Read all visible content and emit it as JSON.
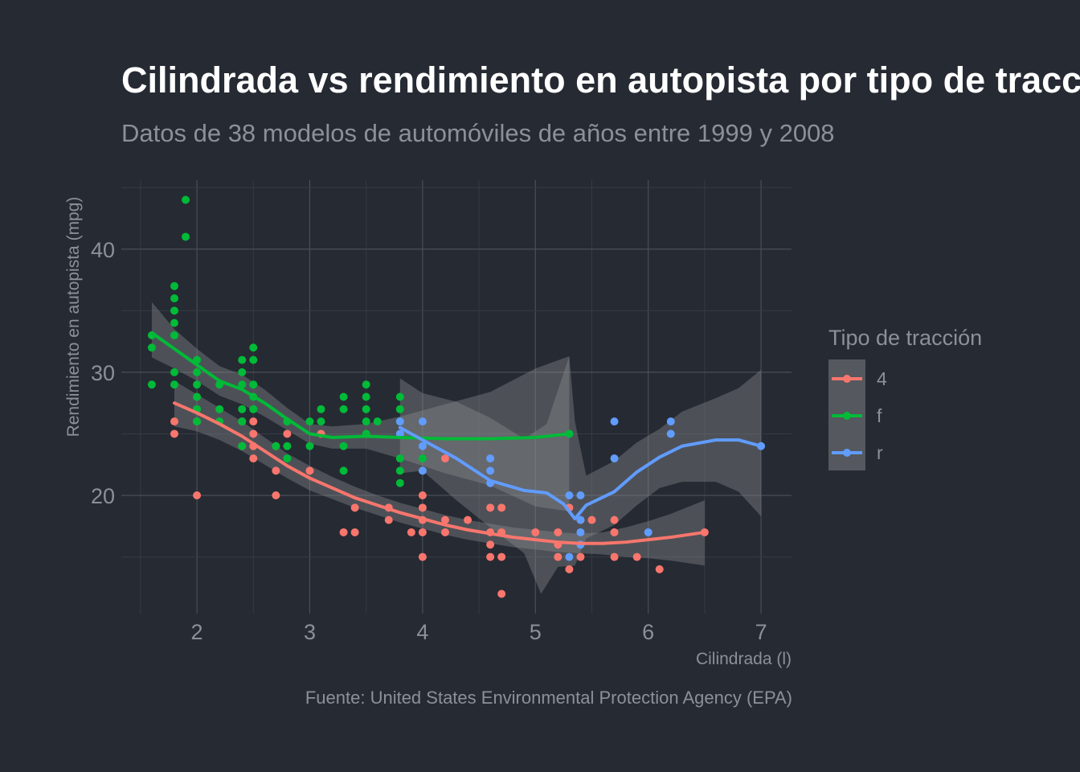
{
  "chart_data": {
    "type": "scatter",
    "title": "Cilindrada vs rendimiento en autopista por tipo de tracción",
    "subtitle": "Datos de 38 modelos de automóviles de años entre 1999 y 2008",
    "caption": "Fuente: United States Environmental Protection Agency (EPA)",
    "xlabel": "Cilindrada (l)",
    "ylabel": "Rendimiento en autopista (mpg)",
    "xlim": [
      1.33,
      7.27
    ],
    "ylim": [
      10.4,
      45.6
    ],
    "x_ticks": [
      "2",
      "3",
      "4",
      "5",
      "6",
      "7"
    ],
    "y_ticks": [
      "20",
      "30",
      "40"
    ],
    "grid": true,
    "legend_title": "Tipo de tracción",
    "legend_position": "right",
    "background": "#262a33",
    "series": [
      {
        "name": "4",
        "color": "#f8766d",
        "points": [
          [
            1.8,
            26
          ],
          [
            1.8,
            25
          ],
          [
            2,
            20
          ],
          [
            2,
            26
          ],
          [
            2.4,
            24
          ],
          [
            2.4,
            26
          ],
          [
            2.5,
            26
          ],
          [
            2.5,
            25
          ],
          [
            2.5,
            24
          ],
          [
            2.5,
            23
          ],
          [
            2.7,
            24
          ],
          [
            2.7,
            22
          ],
          [
            2.7,
            20
          ],
          [
            2.8,
            25
          ],
          [
            3,
            22
          ],
          [
            3.1,
            25
          ],
          [
            3.3,
            17
          ],
          [
            3.4,
            19
          ],
          [
            3.4,
            17
          ],
          [
            3.7,
            19
          ],
          [
            3.7,
            18
          ],
          [
            3.9,
            17
          ],
          [
            4,
            20
          ],
          [
            4,
            19
          ],
          [
            4,
            18
          ],
          [
            4,
            17
          ],
          [
            4,
            15
          ],
          [
            4.2,
            23
          ],
          [
            4.2,
            18
          ],
          [
            4.2,
            17
          ],
          [
            4.4,
            18
          ],
          [
            4.6,
            19
          ],
          [
            4.6,
            17
          ],
          [
            4.6,
            16
          ],
          [
            4.6,
            15
          ],
          [
            4.7,
            19
          ],
          [
            4.7,
            17
          ],
          [
            4.7,
            15
          ],
          [
            4.7,
            12
          ],
          [
            5,
            17
          ],
          [
            5.2,
            17
          ],
          [
            5.2,
            16
          ],
          [
            5.2,
            15
          ],
          [
            5.3,
            19
          ],
          [
            5.3,
            14
          ],
          [
            5.4,
            15
          ],
          [
            5.4,
            18
          ],
          [
            5.5,
            18
          ],
          [
            5.7,
            18
          ],
          [
            5.7,
            17
          ],
          [
            5.7,
            15
          ],
          [
            5.9,
            15
          ],
          [
            6.1,
            14
          ],
          [
            6.5,
            17
          ]
        ],
        "smooth": [
          [
            1.8,
            27.5
          ],
          [
            2,
            26.7
          ],
          [
            2.2,
            25.8
          ],
          [
            2.4,
            24.8
          ],
          [
            2.6,
            23.6
          ],
          [
            2.8,
            22.4
          ],
          [
            3,
            21.4
          ],
          [
            3.2,
            20.6
          ],
          [
            3.4,
            19.8
          ],
          [
            3.6,
            19.2
          ],
          [
            3.8,
            18.6
          ],
          [
            4,
            18.1
          ],
          [
            4.2,
            17.6
          ],
          [
            4.4,
            17.2
          ],
          [
            4.6,
            16.9
          ],
          [
            4.8,
            16.6
          ],
          [
            5,
            16.4
          ],
          [
            5.2,
            16.2
          ],
          [
            5.4,
            16.1
          ],
          [
            5.6,
            16.1
          ],
          [
            5.8,
            16.2
          ],
          [
            6,
            16.4
          ],
          [
            6.2,
            16.6
          ],
          [
            6.5,
            17
          ]
        ],
        "band_upper": [
          [
            1.8,
            29.3
          ],
          [
            2,
            28.2
          ],
          [
            2.2,
            27.1
          ],
          [
            2.4,
            26
          ],
          [
            2.6,
            24.7
          ],
          [
            2.8,
            23.4
          ],
          [
            3,
            22.4
          ],
          [
            3.2,
            21.5
          ],
          [
            3.4,
            20.7
          ],
          [
            3.6,
            20
          ],
          [
            3.8,
            19.4
          ],
          [
            4,
            18.9
          ],
          [
            4.2,
            18.4
          ],
          [
            4.4,
            18
          ],
          [
            4.6,
            17.7
          ],
          [
            4.8,
            17.4
          ],
          [
            5,
            17.2
          ],
          [
            5.2,
            17
          ],
          [
            5.4,
            16.9
          ],
          [
            5.6,
            17
          ],
          [
            5.8,
            17.4
          ],
          [
            6,
            17.9
          ],
          [
            6.2,
            18.5
          ],
          [
            6.5,
            19.6
          ]
        ],
        "band_lower": [
          [
            1.8,
            25.6
          ],
          [
            2,
            25.2
          ],
          [
            2.2,
            24.5
          ],
          [
            2.4,
            23.6
          ],
          [
            2.6,
            22.5
          ],
          [
            2.8,
            21.4
          ],
          [
            3,
            20.4
          ],
          [
            3.2,
            19.7
          ],
          [
            3.4,
            19
          ],
          [
            3.6,
            18.4
          ],
          [
            3.8,
            17.8
          ],
          [
            4,
            17.3
          ],
          [
            4.2,
            16.8
          ],
          [
            4.4,
            16.4
          ],
          [
            4.6,
            16.1
          ],
          [
            4.8,
            15.8
          ],
          [
            5,
            15.6
          ],
          [
            5.2,
            15.4
          ],
          [
            5.4,
            15.3
          ],
          [
            5.6,
            15.2
          ],
          [
            5.8,
            15
          ],
          [
            6,
            14.9
          ],
          [
            6.2,
            14.7
          ],
          [
            6.5,
            14.3
          ]
        ]
      },
      {
        "name": "f",
        "color": "#00ba38",
        "points": [
          [
            1.6,
            33
          ],
          [
            1.6,
            32
          ],
          [
            1.6,
            29
          ],
          [
            1.8,
            37
          ],
          [
            1.8,
            36
          ],
          [
            1.8,
            35
          ],
          [
            1.8,
            34
          ],
          [
            1.8,
            33
          ],
          [
            1.8,
            30
          ],
          [
            1.8,
            29
          ],
          [
            1.9,
            44
          ],
          [
            1.9,
            41
          ],
          [
            2,
            31
          ],
          [
            2,
            30
          ],
          [
            2,
            29
          ],
          [
            2,
            28
          ],
          [
            2,
            27
          ],
          [
            2,
            26
          ],
          [
            2.2,
            29
          ],
          [
            2.2,
            27
          ],
          [
            2.2,
            26
          ],
          [
            2.4,
            31
          ],
          [
            2.4,
            30
          ],
          [
            2.4,
            29
          ],
          [
            2.4,
            27
          ],
          [
            2.4,
            26
          ],
          [
            2.4,
            24
          ],
          [
            2.5,
            32
          ],
          [
            2.5,
            31
          ],
          [
            2.5,
            29
          ],
          [
            2.5,
            28
          ],
          [
            2.5,
            27
          ],
          [
            2.7,
            24
          ],
          [
            2.8,
            26
          ],
          [
            2.8,
            24
          ],
          [
            2.8,
            23
          ],
          [
            3,
            26
          ],
          [
            3,
            24
          ],
          [
            3.1,
            27
          ],
          [
            3.1,
            26
          ],
          [
            3.3,
            28
          ],
          [
            3.3,
            27
          ],
          [
            3.3,
            24
          ],
          [
            3.3,
            22
          ],
          [
            3.5,
            29
          ],
          [
            3.5,
            28
          ],
          [
            3.5,
            27
          ],
          [
            3.5,
            26
          ],
          [
            3.5,
            25
          ],
          [
            3.6,
            26
          ],
          [
            3.8,
            28
          ],
          [
            3.8,
            27
          ],
          [
            3.8,
            26
          ],
          [
            3.8,
            23
          ],
          [
            3.8,
            22
          ],
          [
            3.8,
            21
          ],
          [
            4,
            23
          ],
          [
            5.3,
            25
          ]
        ],
        "smooth": [
          [
            1.6,
            33.2
          ],
          [
            1.8,
            31.9
          ],
          [
            2,
            30.6
          ],
          [
            2.2,
            29.3
          ],
          [
            2.4,
            28.6
          ],
          [
            2.6,
            27.5
          ],
          [
            2.8,
            26.2
          ],
          [
            3,
            25
          ],
          [
            3.2,
            24.7
          ],
          [
            3.5,
            24.8
          ],
          [
            3.8,
            24.7
          ],
          [
            4.2,
            24.6
          ],
          [
            4.6,
            24.6
          ],
          [
            5,
            24.7
          ],
          [
            5.3,
            25
          ]
        ],
        "band_upper": [
          [
            1.6,
            35.7
          ],
          [
            1.8,
            33.5
          ],
          [
            2,
            31.9
          ],
          [
            2.2,
            30.5
          ],
          [
            2.4,
            29.8
          ],
          [
            2.6,
            28.6
          ],
          [
            2.8,
            27.1
          ],
          [
            3,
            25.8
          ],
          [
            3.2,
            25.6
          ],
          [
            3.5,
            25.8
          ],
          [
            3.8,
            26.4
          ],
          [
            4.2,
            27.4
          ],
          [
            4.6,
            28.4
          ],
          [
            5,
            30.3
          ],
          [
            5.3,
            31.3
          ]
        ],
        "band_lower": [
          [
            1.6,
            31.2
          ],
          [
            1.8,
            30.3
          ],
          [
            2,
            29.3
          ],
          [
            2.2,
            28.1
          ],
          [
            2.4,
            27.4
          ],
          [
            2.6,
            26.4
          ],
          [
            2.8,
            25.3
          ],
          [
            3,
            24.2
          ],
          [
            3.2,
            23.8
          ],
          [
            3.5,
            23.8
          ],
          [
            3.8,
            23
          ],
          [
            4.2,
            21.8
          ],
          [
            4.6,
            20.8
          ],
          [
            5,
            19.1
          ],
          [
            5.3,
            18.7
          ]
        ]
      },
      {
        "name": "r",
        "color": "#619cff",
        "points": [
          [
            3.8,
            26
          ],
          [
            3.8,
            25
          ],
          [
            4,
            26
          ],
          [
            4,
            24
          ],
          [
            4,
            22
          ],
          [
            4.6,
            23
          ],
          [
            4.6,
            22
          ],
          [
            4.6,
            21
          ],
          [
            5.3,
            20
          ],
          [
            5.3,
            15
          ],
          [
            5.4,
            20
          ],
          [
            5.4,
            18
          ],
          [
            5.4,
            17
          ],
          [
            5.4,
            16
          ],
          [
            5.7,
            26
          ],
          [
            5.7,
            23
          ],
          [
            6,
            17
          ],
          [
            6.2,
            26
          ],
          [
            6.2,
            25
          ],
          [
            7,
            24
          ]
        ],
        "smooth": [
          [
            3.8,
            25.5
          ],
          [
            4,
            24.5
          ],
          [
            4.3,
            23
          ],
          [
            4.6,
            21.2
          ],
          [
            4.9,
            20.4
          ],
          [
            5.1,
            20.2
          ],
          [
            5.25,
            19.3
          ],
          [
            5.35,
            18.1
          ],
          [
            5.45,
            19.2
          ],
          [
            5.7,
            20.3
          ],
          [
            5.9,
            21.9
          ],
          [
            6.1,
            23.1
          ],
          [
            6.3,
            24
          ],
          [
            6.6,
            24.5
          ],
          [
            6.8,
            24.5
          ],
          [
            7,
            24
          ]
        ],
        "band_upper": [
          [
            3.8,
            29.5
          ],
          [
            4,
            28.3
          ],
          [
            4.3,
            27.6
          ],
          [
            4.6,
            26.3
          ],
          [
            4.9,
            24.6
          ],
          [
            5.1,
            25.8
          ],
          [
            5.3,
            31.3
          ],
          [
            5.35,
            26
          ],
          [
            5.45,
            21.6
          ],
          [
            5.7,
            22.8
          ],
          [
            5.9,
            24.3
          ],
          [
            6.1,
            25.4
          ],
          [
            6.3,
            26.8
          ],
          [
            6.6,
            27.9
          ],
          [
            6.8,
            28.7
          ],
          [
            7,
            30.2
          ]
        ],
        "band_lower": [
          [
            3.8,
            21.8
          ],
          [
            4,
            22
          ],
          [
            4.3,
            19.6
          ],
          [
            4.6,
            17.4
          ],
          [
            4.9,
            15.3
          ],
          [
            5.05,
            12
          ],
          [
            5.2,
            14.2
          ],
          [
            5.35,
            14.3
          ],
          [
            5.45,
            16.5
          ],
          [
            5.7,
            17.6
          ],
          [
            5.9,
            19.2
          ],
          [
            6.1,
            20.6
          ],
          [
            6.3,
            21.1
          ],
          [
            6.6,
            21.1
          ],
          [
            6.8,
            20.3
          ],
          [
            7,
            18.3
          ]
        ]
      }
    ]
  }
}
